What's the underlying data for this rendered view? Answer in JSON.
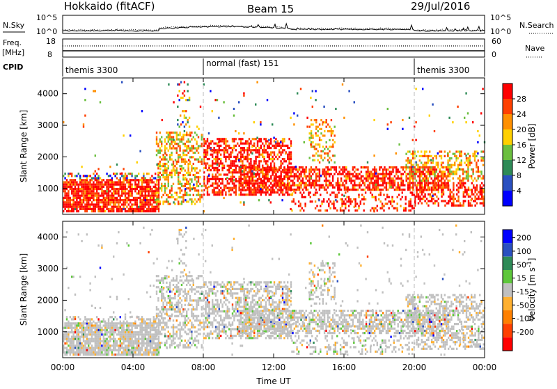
{
  "header": {
    "station": "Hokkaido (fitACF)",
    "beam": "Beam 15",
    "date": "29/Jul/2016"
  },
  "top_panels": {
    "nsky_label": "N.Sky",
    "nsky_ticks": [
      "10^5",
      "10^0"
    ],
    "nsearch_label": "N.Search",
    "nsearch_ticks": [
      "10^5",
      "10^0"
    ],
    "freq_label": "Freq.",
    "freq_unit": "[MHz]",
    "freq_ticks": [
      "18",
      "8"
    ],
    "nave_label": "Nave",
    "nave_ticks": [
      "60",
      "0"
    ],
    "cpid_label": "CPID",
    "cpid_segments": [
      {
        "label": "themis 3300",
        "start_h": 0,
        "end_h": 8
      },
      {
        "label": "normal (fast) 151",
        "start_h": 8,
        "end_h": 20
      },
      {
        "label": "themis 3300",
        "start_h": 20,
        "end_h": 24
      }
    ]
  },
  "chart_data": [
    {
      "type": "heatmap",
      "name": "power",
      "ylabel": "Slant Range [km]",
      "ylim": [
        180,
        4500
      ],
      "yticks": [
        "1000",
        "2000",
        "3000",
        "4000"
      ],
      "xlim": [
        0,
        24
      ],
      "colorbar_label": "Power [dB]",
      "colorbar_ticks": [
        "4",
        "8",
        "12",
        "16",
        "20",
        "24",
        "28"
      ],
      "colorbar_colors": [
        "#0000ff",
        "#2a50c0",
        "#2e8b57",
        "#6bbf3f",
        "#ffd000",
        "#ff9000",
        "#ff4000",
        "#ff0000"
      ],
      "background_color": "#ffffff"
    },
    {
      "type": "heatmap",
      "name": "velocity",
      "ylabel": "Slant Range [km]",
      "ylim": [
        180,
        4500
      ],
      "yticks": [
        "1000",
        "2000",
        "3000",
        "4000"
      ],
      "xlim": [
        0,
        24
      ],
      "xticks": [
        "00:00",
        "04:00",
        "08:00",
        "12:00",
        "16:00",
        "20:00",
        "00:00"
      ],
      "xlabel": "Time UT",
      "colorbar_label": "Velocity [m s",
      "colorbar_label_sup": "-1",
      "colorbar_label_end": "]",
      "colorbar_ticks": [
        "200",
        "100",
        "50",
        "15",
        "-15",
        "-50",
        "-100",
        "-200"
      ],
      "colorbar_colors": [
        "#0000ff",
        "#2a50c0",
        "#2e8b57",
        "#5ec73b",
        "#c0c0c0",
        "#ffb030",
        "#ff8000",
        "#ff4000",
        "#ff0000"
      ],
      "background_color": "#ffffff"
    }
  ]
}
